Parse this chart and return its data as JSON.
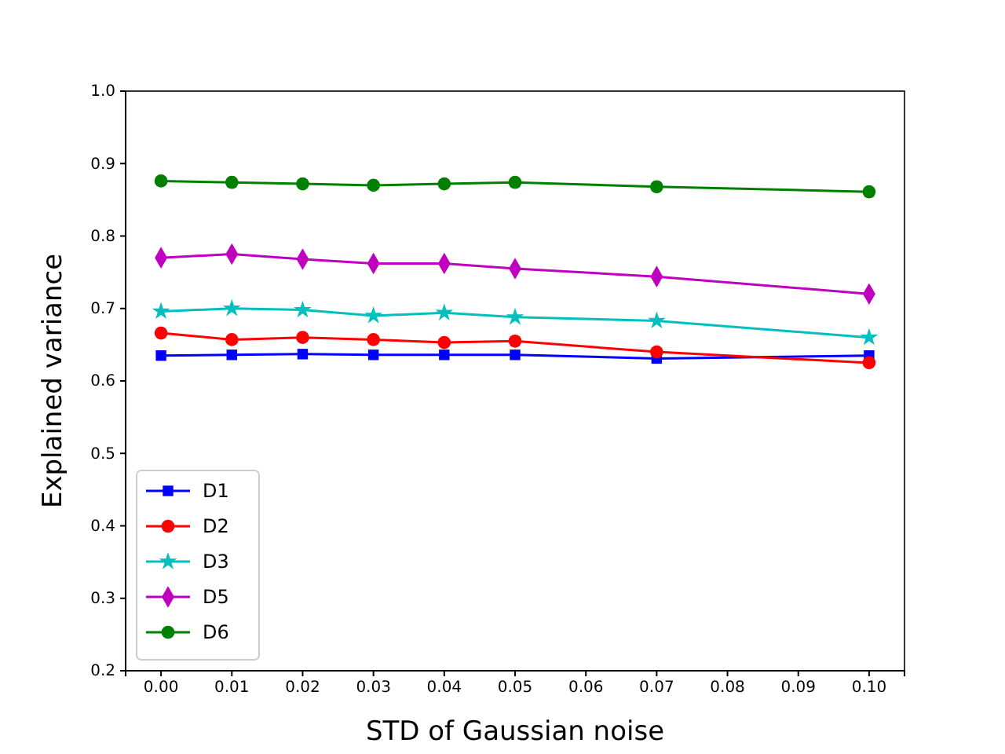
{
  "chart_data": {
    "type": "line",
    "xlabel": "STD of Gaussian noise",
    "ylabel": "Explained variance",
    "x": [
      0,
      0.01,
      0.02,
      0.03,
      0.04,
      0.05,
      0.07,
      0.1
    ],
    "series": [
      {
        "name": "D1",
        "color": "#0000ff",
        "marker": "square",
        "values": [
          0.635,
          0.636,
          0.637,
          0.636,
          0.636,
          0.636,
          0.631,
          0.635
        ]
      },
      {
        "name": "D2",
        "color": "#ff0000",
        "marker": "circle",
        "values": [
          0.666,
          0.657,
          0.66,
          0.657,
          0.653,
          0.655,
          0.64,
          0.625
        ]
      },
      {
        "name": "D3",
        "color": "#00bfbf",
        "marker": "star",
        "values": [
          0.696,
          0.7,
          0.698,
          0.69,
          0.694,
          0.688,
          0.683,
          0.66
        ]
      },
      {
        "name": "D5",
        "color": "#bf00bf",
        "marker": "diamond",
        "values": [
          0.77,
          0.775,
          0.768,
          0.762,
          0.762,
          0.755,
          0.744,
          0.72
        ]
      },
      {
        "name": "D6",
        "color": "#008000",
        "marker": "circle",
        "values": [
          0.876,
          0.874,
          0.872,
          0.87,
          0.872,
          0.874,
          0.868,
          0.861
        ]
      }
    ],
    "xlim": [
      -0.005,
      0.105
    ],
    "xticks": [
      {
        "value": 0,
        "label": "0.00"
      },
      {
        "value": 0.01,
        "label": "0.01"
      },
      {
        "value": 0.02,
        "label": "0.02"
      },
      {
        "value": 0.03,
        "label": "0.03"
      },
      {
        "value": 0.04,
        "label": "0.04"
      },
      {
        "value": 0.05,
        "label": "0.05"
      },
      {
        "value": 0.06,
        "label": "0.06"
      },
      {
        "value": 0.07,
        "label": "0.07"
      },
      {
        "value": 0.08,
        "label": "0.08"
      },
      {
        "value": 0.09,
        "label": "0.09"
      },
      {
        "value": 0.1,
        "label": "0.10"
      }
    ],
    "ylim": [
      0.2,
      1.0
    ],
    "yticks": [
      0.2,
      0.3,
      0.4,
      0.5,
      0.6,
      0.7,
      0.8,
      0.9,
      {
        "value": 1.0,
        "label": "1.0"
      }
    ],
    "legend": "bottom left",
    "line_style": "solid"
  }
}
